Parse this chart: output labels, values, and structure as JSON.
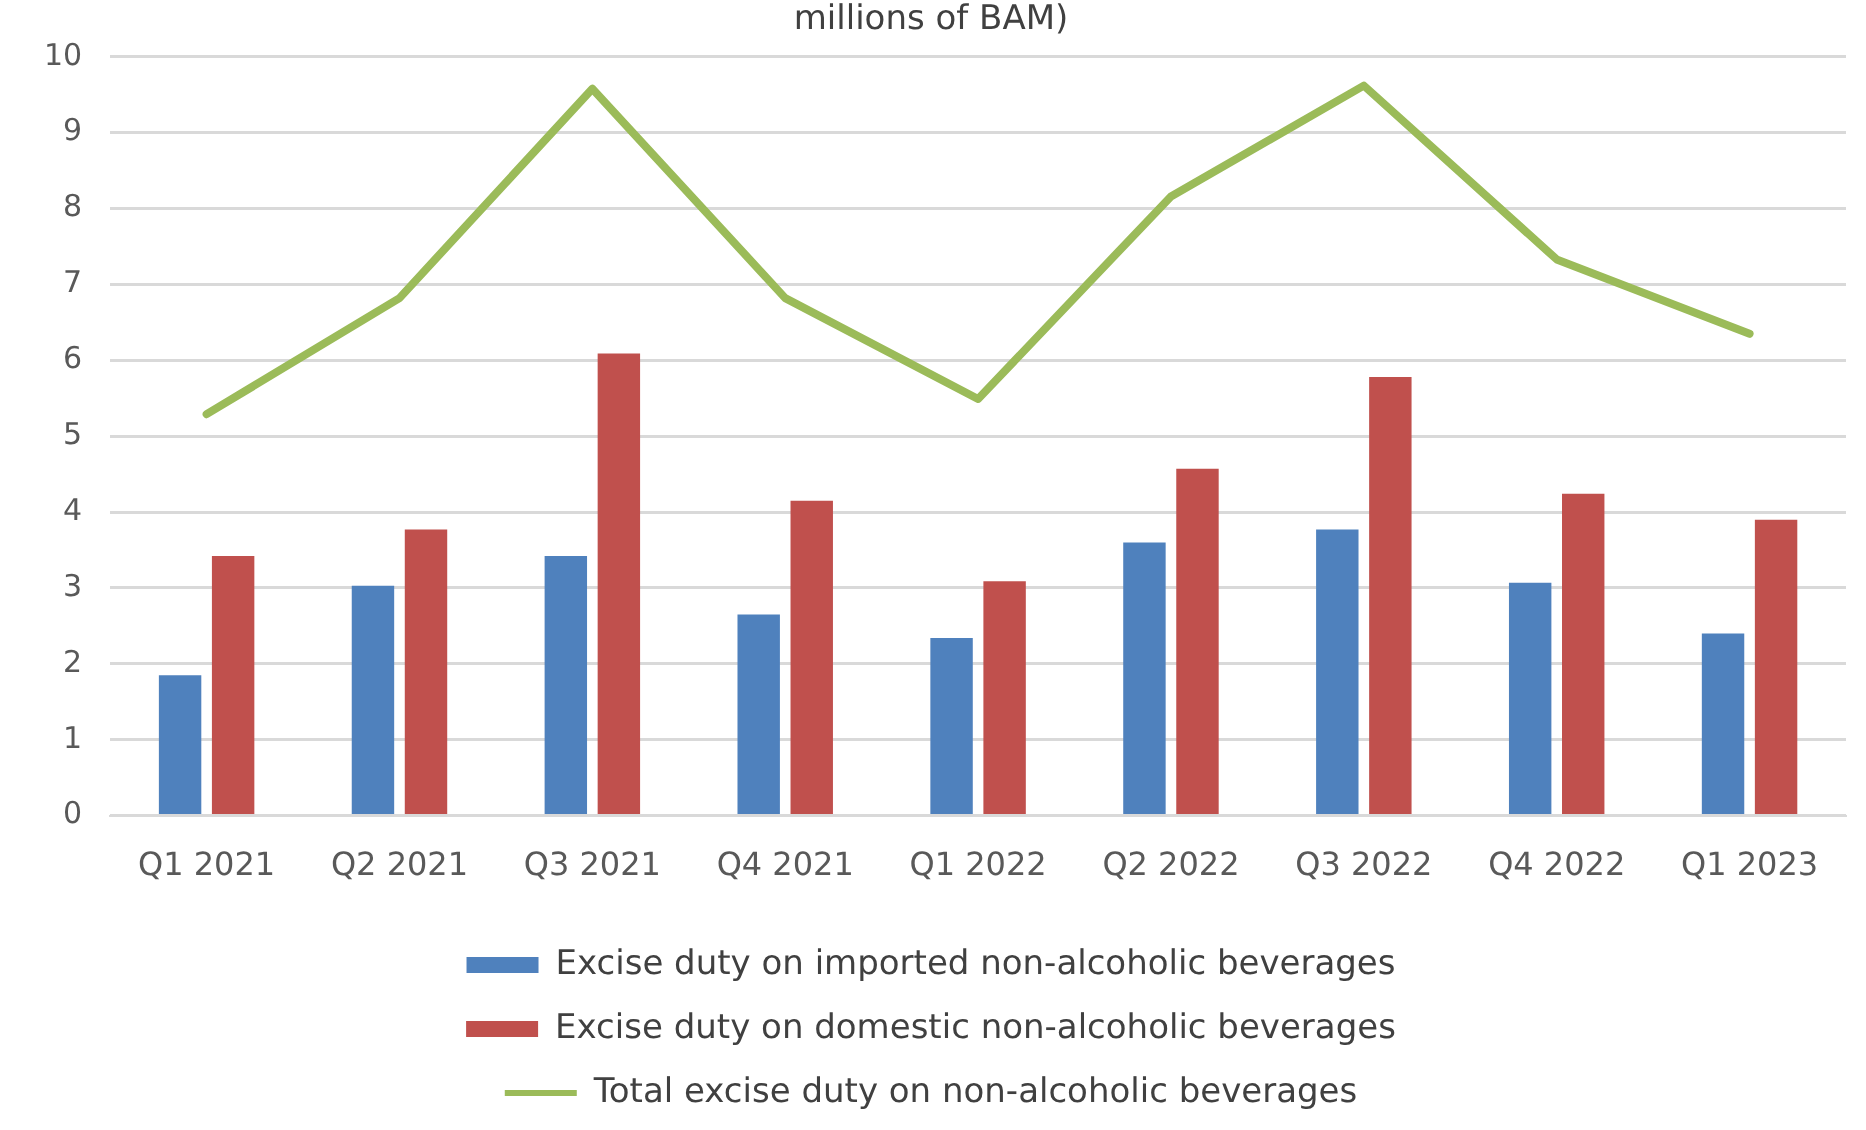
{
  "chart_data": {
    "type": "bar",
    "title": "millions of BAM)",
    "categories": [
      "Q1 2021",
      "Q2 2021",
      "Q3 2021",
      "Q4 2021",
      "Q1 2022",
      "Q2 2022",
      "Q3 2022",
      "Q4 2022",
      "Q1 2023"
    ],
    "series": [
      {
        "name": "Excise duty on imported non-alcoholic beverages",
        "color": "#4f81bd",
        "values": [
          1.85,
          3.03,
          3.42,
          2.65,
          2.34,
          3.6,
          3.77,
          3.07,
          2.4
        ]
      },
      {
        "name": "Excise duty on domestic non-alcoholic beverages",
        "color": "#c0504d",
        "values": [
          3.42,
          3.77,
          6.09,
          4.15,
          3.09,
          4.57,
          5.78,
          4.24,
          3.9
        ]
      },
      {
        "name": "Total excise duty on non-alcoholic beverages",
        "type": "line",
        "color": "#9bbb59",
        "values": [
          5.29,
          6.82,
          9.58,
          6.82,
          5.49,
          8.16,
          9.62,
          7.33,
          6.35
        ]
      }
    ],
    "ylim": [
      0,
      10
    ],
    "yticks": [
      0,
      1,
      2,
      3,
      4,
      5,
      6,
      7,
      8,
      9,
      10
    ],
    "grid": "y",
    "legend": "bottom",
    "marker": "none"
  }
}
